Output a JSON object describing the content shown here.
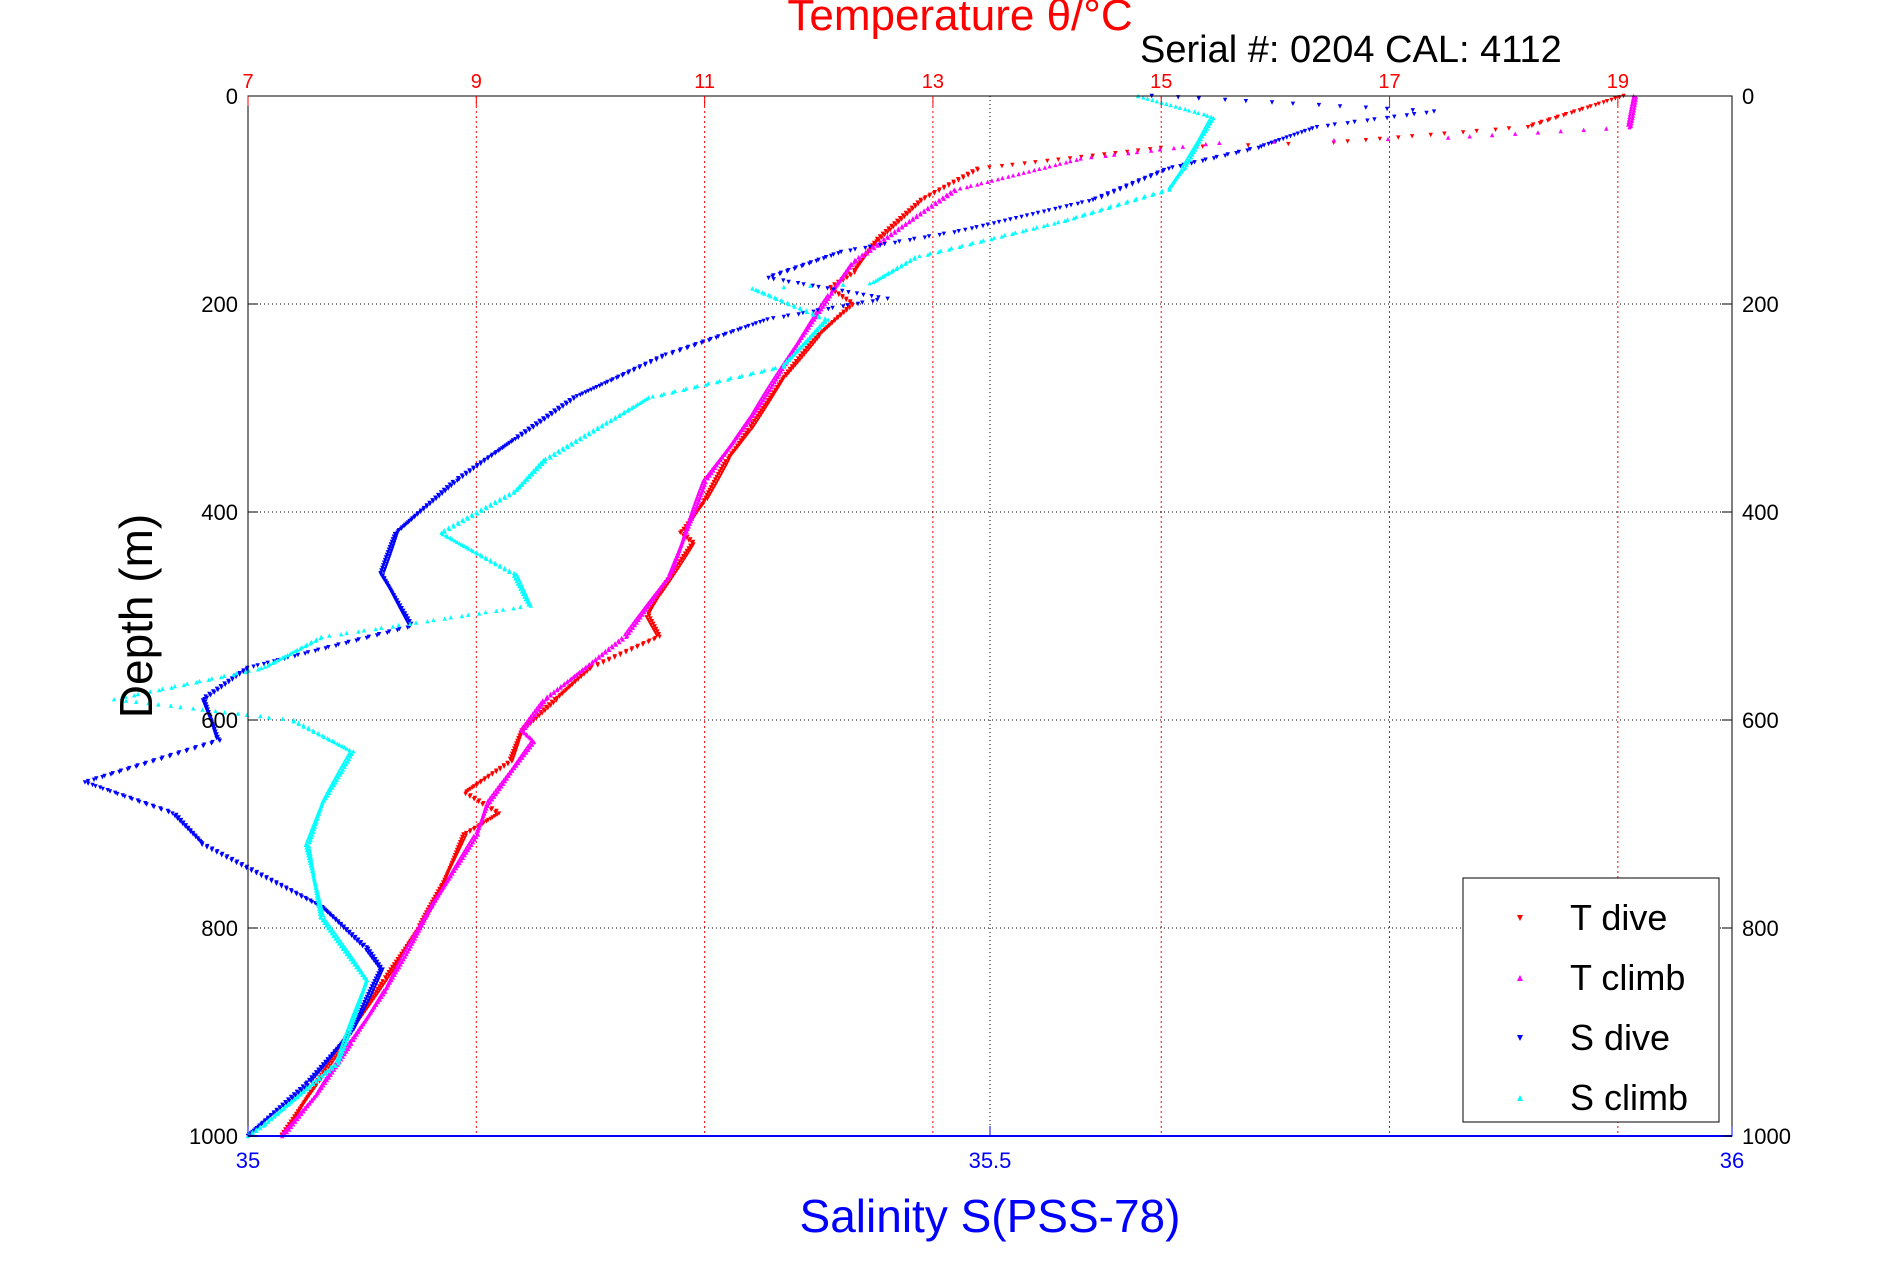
{
  "chart_data": {
    "type": "scatter",
    "title": "Temperature θ/°C",
    "subtitle": "Serial #: 0204  CAL: 4112",
    "xlabel": "Salinity S(PSS-78)",
    "ylabel": "Depth (m)",
    "temperature_axis": {
      "range": [
        7,
        20
      ],
      "ticks": [
        "7",
        "9",
        "11",
        "13",
        "15",
        "17",
        "19"
      ],
      "tick_values": [
        7,
        9,
        11,
        13,
        15,
        17,
        19
      ],
      "color": "#ff0000"
    },
    "salinity_axis": {
      "range": [
        35,
        36
      ],
      "ticks": [
        "35",
        "35.5",
        "36"
      ],
      "tick_values": [
        35,
        35.5,
        36
      ],
      "color": "#0000ff"
    },
    "depth_axis": {
      "range": [
        0,
        1000
      ],
      "reversed": true,
      "ticks": [
        "0",
        "200",
        "400",
        "600",
        "800",
        "1000"
      ],
      "tick_values": [
        0,
        200,
        400,
        600,
        800,
        1000
      ]
    },
    "grid": true,
    "legend": {
      "placement": "bottom-right",
      "entries": [
        "T dive",
        "T climb",
        "S dive",
        "S climb"
      ]
    },
    "series": [
      {
        "name": "T dive",
        "axis": "temperature",
        "color": "#ff0000",
        "marker": "triangle-down",
        "points": [
          [
            19.05,
            0
          ],
          [
            18.2,
            30
          ],
          [
            16.5,
            45
          ],
          [
            15.0,
            50
          ],
          [
            13.4,
            70
          ],
          [
            12.9,
            100
          ],
          [
            12.5,
            140
          ],
          [
            12.3,
            170
          ],
          [
            12.1,
            185
          ],
          [
            12.3,
            200
          ],
          [
            12.0,
            230
          ],
          [
            11.7,
            270
          ],
          [
            11.4,
            320
          ],
          [
            11.2,
            350
          ],
          [
            11.0,
            390
          ],
          [
            10.8,
            420
          ],
          [
            10.9,
            430
          ],
          [
            10.6,
            480
          ],
          [
            10.5,
            500
          ],
          [
            10.6,
            520
          ],
          [
            10.0,
            550
          ],
          [
            9.7,
            580
          ],
          [
            9.4,
            610
          ],
          [
            9.3,
            640
          ],
          [
            8.9,
            670
          ],
          [
            9.2,
            690
          ],
          [
            8.9,
            710
          ],
          [
            8.7,
            760
          ],
          [
            8.5,
            800
          ],
          [
            8.2,
            850
          ],
          [
            7.9,
            900
          ],
          [
            7.6,
            950
          ],
          [
            7.3,
            1000
          ]
        ]
      },
      {
        "name": "T climb",
        "axis": "temperature",
        "color": "#ff00ff",
        "marker": "triangle-up",
        "points": [
          [
            19.15,
            0
          ],
          [
            19.1,
            30
          ],
          [
            17.5,
            40
          ],
          [
            15.5,
            45
          ],
          [
            14.3,
            60
          ],
          [
            13.2,
            90
          ],
          [
            12.8,
            120
          ],
          [
            12.3,
            160
          ],
          [
            12.1,
            190
          ],
          [
            11.8,
            240
          ],
          [
            11.4,
            310
          ],
          [
            11.0,
            370
          ],
          [
            10.7,
            460
          ],
          [
            10.3,
            520
          ],
          [
            9.6,
            580
          ],
          [
            9.4,
            610
          ],
          [
            9.5,
            620
          ],
          [
            9.3,
            650
          ],
          [
            9.1,
            680
          ],
          [
            9.0,
            710
          ],
          [
            8.6,
            780
          ],
          [
            8.2,
            860
          ],
          [
            7.9,
            910
          ],
          [
            7.6,
            960
          ],
          [
            7.3,
            1000
          ]
        ]
      },
      {
        "name": "S dive",
        "axis": "salinity",
        "color": "#0000ff",
        "marker": "triangle-down",
        "points": [
          [
            35.61,
            0
          ],
          [
            35.8,
            15
          ],
          [
            35.72,
            30
          ],
          [
            35.68,
            50
          ],
          [
            35.62,
            70
          ],
          [
            35.57,
            100
          ],
          [
            35.48,
            130
          ],
          [
            35.4,
            150
          ],
          [
            35.35,
            175
          ],
          [
            35.43,
            195
          ],
          [
            35.35,
            215
          ],
          [
            35.28,
            250
          ],
          [
            35.22,
            290
          ],
          [
            35.18,
            330
          ],
          [
            35.14,
            370
          ],
          [
            35.1,
            420
          ],
          [
            35.09,
            460
          ],
          [
            35.11,
            510
          ],
          [
            35.0,
            550
          ],
          [
            34.97,
            580
          ],
          [
            34.98,
            620
          ],
          [
            34.89,
            660
          ],
          [
            34.95,
            690
          ],
          [
            34.97,
            720
          ],
          [
            35.05,
            780
          ],
          [
            35.08,
            820
          ],
          [
            35.09,
            840
          ],
          [
            35.07,
            900
          ],
          [
            35.04,
            950
          ],
          [
            35.0,
            1000
          ]
        ]
      },
      {
        "name": "S climb",
        "axis": "salinity",
        "color": "#00ffff",
        "marker": "triangle-up",
        "points": [
          [
            35.6,
            0
          ],
          [
            35.65,
            20
          ],
          [
            35.64,
            45
          ],
          [
            35.63,
            70
          ],
          [
            35.62,
            90
          ],
          [
            35.55,
            120
          ],
          [
            35.45,
            155
          ],
          [
            35.42,
            180
          ],
          [
            35.34,
            185
          ],
          [
            35.39,
            215
          ],
          [
            35.36,
            260
          ],
          [
            35.27,
            290
          ],
          [
            35.2,
            350
          ],
          [
            35.18,
            380
          ],
          [
            35.13,
            420
          ],
          [
            35.18,
            460
          ],
          [
            35.19,
            490
          ],
          [
            35.05,
            520
          ],
          [
            35.01,
            550
          ],
          [
            34.91,
            580
          ],
          [
            35.03,
            600
          ],
          [
            35.07,
            630
          ],
          [
            35.05,
            680
          ],
          [
            35.04,
            720
          ],
          [
            35.05,
            790
          ],
          [
            35.08,
            850
          ],
          [
            35.06,
            930
          ],
          [
            35.01,
            990
          ],
          [
            35.0,
            1000
          ]
        ]
      }
    ]
  }
}
